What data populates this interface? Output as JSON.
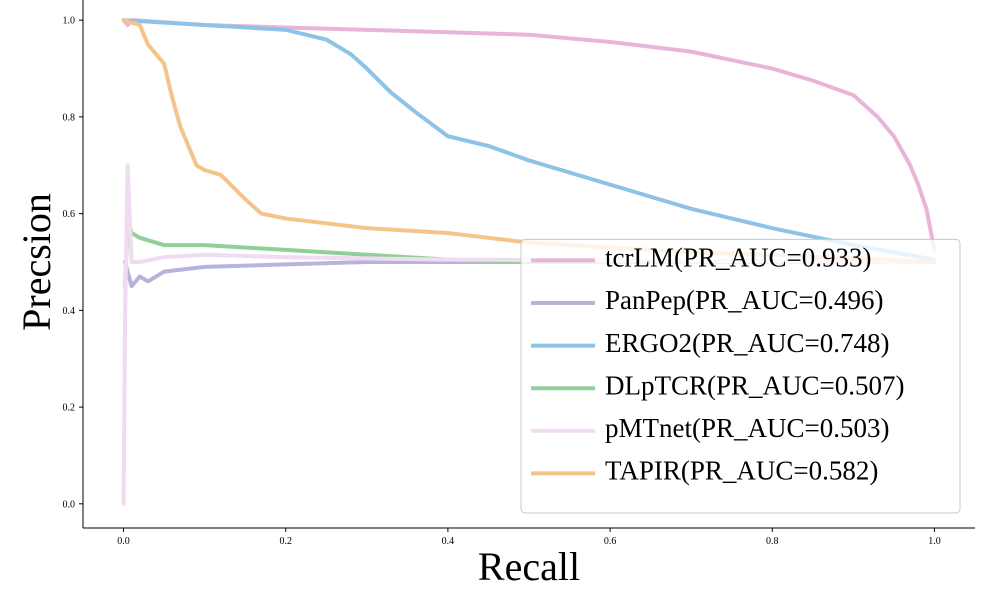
{
  "chart_data": {
    "type": "line",
    "xlabel": "Recall",
    "ylabel": "Precsion",
    "xlim": [
      -0.05,
      1.05
    ],
    "ylim": [
      -0.05,
      1.05
    ],
    "xticks": [
      {
        "value": 0,
        "label": "0.0"
      },
      {
        "value": 0.2,
        "label": "0.2"
      },
      {
        "value": 0.4,
        "label": "0.4"
      },
      {
        "value": 0.6,
        "label": "0.6"
      },
      {
        "value": 0.8,
        "label": "0.8"
      },
      {
        "value": 1,
        "label": "1.0"
      }
    ],
    "yticks": [
      {
        "value": 0,
        "label": "0.0"
      },
      {
        "value": 0.2,
        "label": "0.2"
      },
      {
        "value": 0.4,
        "label": "0.4"
      },
      {
        "value": 0.6,
        "label": "0.6"
      },
      {
        "value": 0.8,
        "label": "0.8"
      },
      {
        "value": 1,
        "label": "1.0"
      }
    ],
    "legend": "lower right",
    "series": [
      {
        "name": "tcrLM(PR_AUC=0.933)",
        "color": "#e8b4d8",
        "x": [
          0,
          0.005,
          0.01,
          0.1,
          0.2,
          0.3,
          0.4,
          0.5,
          0.6,
          0.7,
          0.8,
          0.85,
          0.9,
          0.93,
          0.95,
          0.97,
          0.98,
          0.99,
          1.0
        ],
        "values": [
          1.0,
          0.99,
          1.0,
          0.99,
          0.985,
          0.98,
          0.975,
          0.97,
          0.955,
          0.935,
          0.9,
          0.875,
          0.845,
          0.8,
          0.76,
          0.7,
          0.66,
          0.61,
          0.525
        ]
      },
      {
        "name": "PanPep(PR_AUC=0.496)",
        "color": "#b9b3dc",
        "x": [
          0.002,
          0.005,
          0.01,
          0.02,
          0.03,
          0.05,
          0.1,
          0.2,
          0.3,
          0.5,
          1.0
        ],
        "values": [
          0.5,
          0.48,
          0.45,
          0.47,
          0.46,
          0.48,
          0.49,
          0.495,
          0.5,
          0.5,
          0.5
        ]
      },
      {
        "name": "ERGO2(PR_AUC=0.748)",
        "color": "#8ec3e8",
        "x": [
          0,
          0.1,
          0.2,
          0.25,
          0.28,
          0.3,
          0.33,
          0.36,
          0.4,
          0.45,
          0.5,
          0.6,
          0.7,
          0.8,
          0.9,
          1.0
        ],
        "values": [
          1.0,
          0.99,
          0.98,
          0.96,
          0.93,
          0.9,
          0.85,
          0.81,
          0.76,
          0.74,
          0.71,
          0.66,
          0.61,
          0.57,
          0.535,
          0.505
        ]
      },
      {
        "name": "DLpTCR(PR_AUC=0.507)",
        "color": "#90cf9a",
        "x": [
          0.002,
          0.005,
          0.01,
          0.02,
          0.05,
          0.1,
          0.2,
          0.3,
          0.4,
          0.5,
          1.0
        ],
        "values": [
          0.45,
          0.59,
          0.56,
          0.55,
          0.535,
          0.535,
          0.525,
          0.515,
          0.505,
          0.5,
          0.5
        ]
      },
      {
        "name": "pMTnet(PR_AUC=0.503)",
        "color": "#f0dcf0",
        "x": [
          0,
          0.002,
          0.005,
          0.01,
          0.02,
          0.05,
          0.1,
          0.2,
          0.4,
          1.0
        ],
        "values": [
          0.0,
          0.4,
          0.7,
          0.5,
          0.5,
          0.51,
          0.515,
          0.51,
          0.505,
          0.5
        ]
      },
      {
        "name": "TAPIR(PR_AUC=0.582)",
        "color": "#f4c48c",
        "x": [
          0,
          0.02,
          0.03,
          0.04,
          0.05,
          0.06,
          0.07,
          0.08,
          0.09,
          0.1,
          0.12,
          0.15,
          0.17,
          0.2,
          0.25,
          0.3,
          0.4,
          0.5,
          0.6,
          0.7,
          0.8,
          1.0
        ],
        "values": [
          1.0,
          0.99,
          0.95,
          0.93,
          0.91,
          0.84,
          0.78,
          0.74,
          0.7,
          0.69,
          0.68,
          0.63,
          0.6,
          0.59,
          0.58,
          0.57,
          0.56,
          0.54,
          0.53,
          0.52,
          0.515,
          0.5
        ]
      }
    ]
  }
}
